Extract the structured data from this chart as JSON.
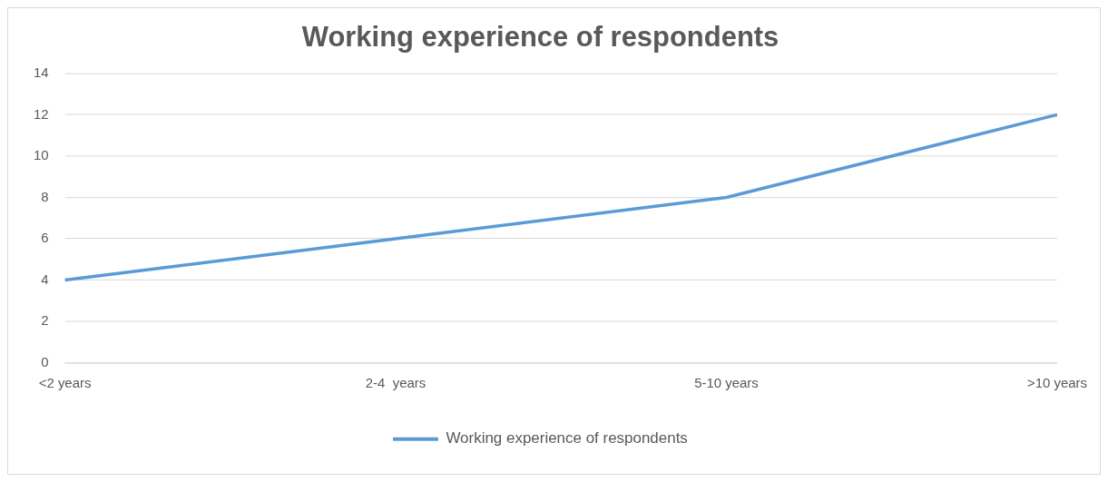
{
  "chart_data": {
    "type": "line",
    "title": "Working experience of respondents",
    "categories": [
      "<2 years",
      "2-4  years",
      "5-10 years",
      ">10 years"
    ],
    "series": [
      {
        "name": "Working experience of respondents",
        "color": "#5b9bd5",
        "values": [
          4,
          6,
          8,
          12
        ]
      }
    ],
    "ylim": [
      0,
      14
    ],
    "yticks": [
      0,
      2,
      4,
      6,
      8,
      10,
      12,
      14
    ],
    "grid": "y",
    "legend": "bottom",
    "marker": "none",
    "line_style": "solid"
  }
}
